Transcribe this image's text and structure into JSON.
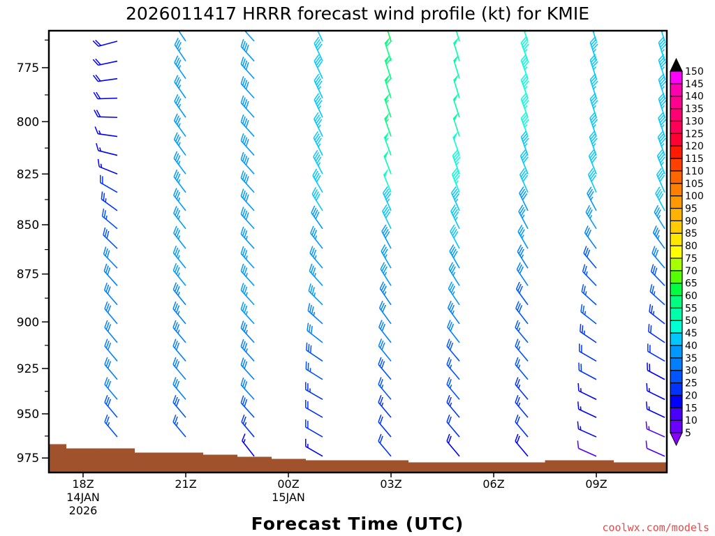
{
  "chart_data": {
    "type": "wind_barb_profile",
    "title": "2026011417 HRRR forecast wind profile (kt) for KMIE",
    "xlabel": "Forecast Time (UTC)",
    "ylabel": "",
    "units": "kt",
    "y_axis": {
      "scale": "log-pressure",
      "inverted": true,
      "range_hpa": [
        758.7,
        983.5
      ],
      "ticks": [
        775,
        800,
        825,
        850,
        875,
        900,
        925,
        950,
        975
      ],
      "tick_labels": [
        "775",
        "800",
        "825",
        "850",
        "875",
        "900",
        "925",
        "950",
        "975"
      ]
    },
    "x_axis": {
      "unit": "hours since 00Z 14JAN2026",
      "range": [
        17.0,
        35.06
      ],
      "ticks": [
        18,
        21,
        24,
        27,
        30,
        33
      ],
      "tick_labels": [
        [
          "18Z",
          "14JAN",
          "2026"
        ],
        [
          "21Z"
        ],
        [
          "00Z",
          "15JAN"
        ],
        [
          "03Z"
        ],
        [
          "06Z"
        ],
        [
          "09Z"
        ]
      ]
    },
    "levels_hpa": [
      763,
      772,
      780,
      789,
      798,
      807,
      816,
      825,
      834,
      843,
      852,
      862,
      872,
      881,
      891,
      901,
      911,
      921,
      931,
      942,
      952,
      963,
      974
    ],
    "columns": [
      {
        "time": "19Z",
        "hour": 19,
        "speed": [
          19,
          19,
          18,
          18,
          18,
          17,
          16,
          17,
          22,
          24,
          26,
          28,
          30,
          31,
          32,
          32,
          32,
          31,
          31,
          30,
          29,
          26
        ],
        "dir": [
          255,
          258,
          262,
          268,
          272,
          278,
          284,
          292,
          300,
          306,
          310,
          314,
          316,
          318,
          319,
          320,
          320,
          320,
          320,
          320,
          320,
          320
        ]
      },
      {
        "time": "21Z",
        "hour": 21,
        "speed": [
          36,
          36,
          36,
          36,
          36,
          36,
          36,
          36,
          36,
          36,
          35,
          35,
          35,
          35,
          34,
          34,
          33,
          32,
          32,
          31,
          29,
          26
        ],
        "dir": [
          326,
          326,
          325,
          325,
          325,
          324,
          324,
          323,
          323,
          322,
          322,
          322,
          321,
          321,
          321,
          320,
          320,
          320,
          320,
          320,
          320,
          320
        ]
      },
      {
        "time": "23Z",
        "hour": 23,
        "speed": [
          38,
          38,
          39,
          39,
          39,
          39,
          39,
          39,
          38,
          38,
          38,
          37,
          36,
          36,
          35,
          35,
          34,
          33,
          31,
          30,
          28,
          24,
          17
        ],
        "dir": [
          318,
          318,
          318,
          318,
          318,
          318,
          318,
          318,
          318,
          318,
          318,
          318,
          318,
          318,
          318,
          318,
          318,
          318,
          318,
          318,
          318,
          320,
          322
        ]
      },
      {
        "time": "01Z",
        "hour": 25,
        "speed": [
          40,
          41,
          42,
          44,
          44,
          44,
          44,
          43,
          41,
          40,
          39,
          37,
          36,
          35,
          35,
          34,
          32,
          28,
          26,
          23,
          22,
          20,
          17
        ],
        "dir": [
          335,
          335,
          335,
          335,
          335,
          334,
          333,
          332,
          330,
          328,
          325,
          322,
          320,
          318,
          315,
          312,
          308,
          304,
          302,
          300,
          300,
          300,
          300
        ]
      },
      {
        "time": "03Z",
        "hour": 27,
        "speed": [
          60,
          59,
          58,
          58,
          57,
          56,
          54,
          51,
          48,
          44,
          41,
          39,
          37,
          35,
          34,
          32,
          31,
          30,
          28,
          26,
          24,
          22,
          20
        ],
        "dir": [
          342,
          342,
          342,
          342,
          341,
          341,
          340,
          339,
          338,
          336,
          334,
          332,
          330,
          328,
          326,
          324,
          322,
          321,
          320,
          320,
          320,
          320,
          320
        ]
      },
      {
        "time": "05Z",
        "hour": 29,
        "speed": [
          52,
          52,
          51,
          51,
          51,
          50,
          48,
          46,
          45,
          44,
          43,
          41,
          39,
          37,
          35,
          33,
          31,
          29,
          27,
          25,
          23,
          21,
          19
        ],
        "dir": [
          343,
          343,
          343,
          343,
          342,
          342,
          341,
          340,
          338,
          336,
          334,
          332,
          330,
          328,
          326,
          324,
          322,
          320,
          320,
          320,
          320,
          320,
          320
        ]
      },
      {
        "time": "07Z",
        "hour": 31,
        "speed": [
          47,
          47,
          47,
          46,
          46,
          46,
          43,
          41,
          40,
          39,
          37,
          35,
          33,
          31,
          29,
          28,
          27,
          26,
          25,
          24,
          23,
          21,
          19
        ],
        "dir": [
          340,
          340,
          340,
          340,
          340,
          340,
          340,
          338,
          336,
          334,
          332,
          330,
          328,
          326,
          324,
          322,
          320,
          320,
          320,
          320,
          320,
          320,
          320
        ]
      },
      {
        "time": "09Z",
        "hour": 33,
        "speed": [
          44,
          44,
          44,
          44,
          44,
          43,
          43,
          42,
          40,
          37,
          35,
          32,
          29,
          27,
          26,
          25,
          24,
          22,
          20,
          17,
          16,
          15,
          11
        ],
        "dir": [
          342,
          342,
          342,
          342,
          342,
          341,
          340,
          338,
          336,
          332,
          328,
          324,
          320,
          316,
          312,
          308,
          304,
          300,
          298,
          296,
          295,
          294,
          294
        ]
      },
      {
        "time": "11Z",
        "hour": 35,
        "speed": [
          44,
          44,
          44,
          44,
          44,
          44,
          44,
          43,
          42,
          40,
          37,
          33,
          30,
          28,
          26,
          24,
          22,
          20,
          18,
          16,
          15,
          14,
          11
        ],
        "dir": [
          342,
          342,
          342,
          342,
          342,
          341,
          340,
          338,
          336,
          332,
          328,
          324,
          320,
          316,
          312,
          308,
          304,
          300,
          298,
          296,
          295,
          294,
          294
        ]
      }
    ],
    "terrain": {
      "color": "#a0522d",
      "hours": [
        17,
        18,
        19,
        20,
        21,
        22,
        23,
        24,
        25,
        26,
        27,
        28,
        29,
        30,
        31,
        32,
        33,
        34,
        35
      ],
      "surface_pressure_hpa": [
        967.1,
        969.5,
        969.5,
        971.9,
        971.9,
        973.1,
        974.3,
        975.5,
        976.3,
        976.3,
        976.3,
        977.5,
        977.5,
        977.5,
        977.5,
        976.3,
        976.3,
        977.5,
        977.5
      ]
    },
    "colorbar": {
      "labels": [
        "5",
        "10",
        "15",
        "20",
        "25",
        "30",
        "35",
        "40",
        "45",
        "50",
        "55",
        "60",
        "65",
        "70",
        "75",
        "80",
        "85",
        "90",
        "95",
        "100",
        "105",
        "110",
        "115",
        "120",
        "125",
        "130",
        "135",
        "140",
        "145",
        "150"
      ],
      "bin_colors": [
        "#6a00ff",
        "#4a00ff",
        "#0000ff",
        "#0033ff",
        "#0055ff",
        "#0080ff",
        "#0099ff",
        "#00c8ff",
        "#00ffd5",
        "#00ffaa",
        "#00ff80",
        "#00ff40",
        "#55ff00",
        "#a8ff00",
        "#ffff00",
        "#ffe600",
        "#ffcc00",
        "#ffb300",
        "#ff9900",
        "#ff8000",
        "#ff6600",
        "#ff4000",
        "#ff1a00",
        "#ff0033",
        "#ff0059",
        "#ff0075",
        "#ff0090",
        "#ff00b0",
        "#ff00ff"
      ],
      "under_color": "#8800ff",
      "over_color": "#000000"
    },
    "credit": "coolwx.com/models"
  }
}
